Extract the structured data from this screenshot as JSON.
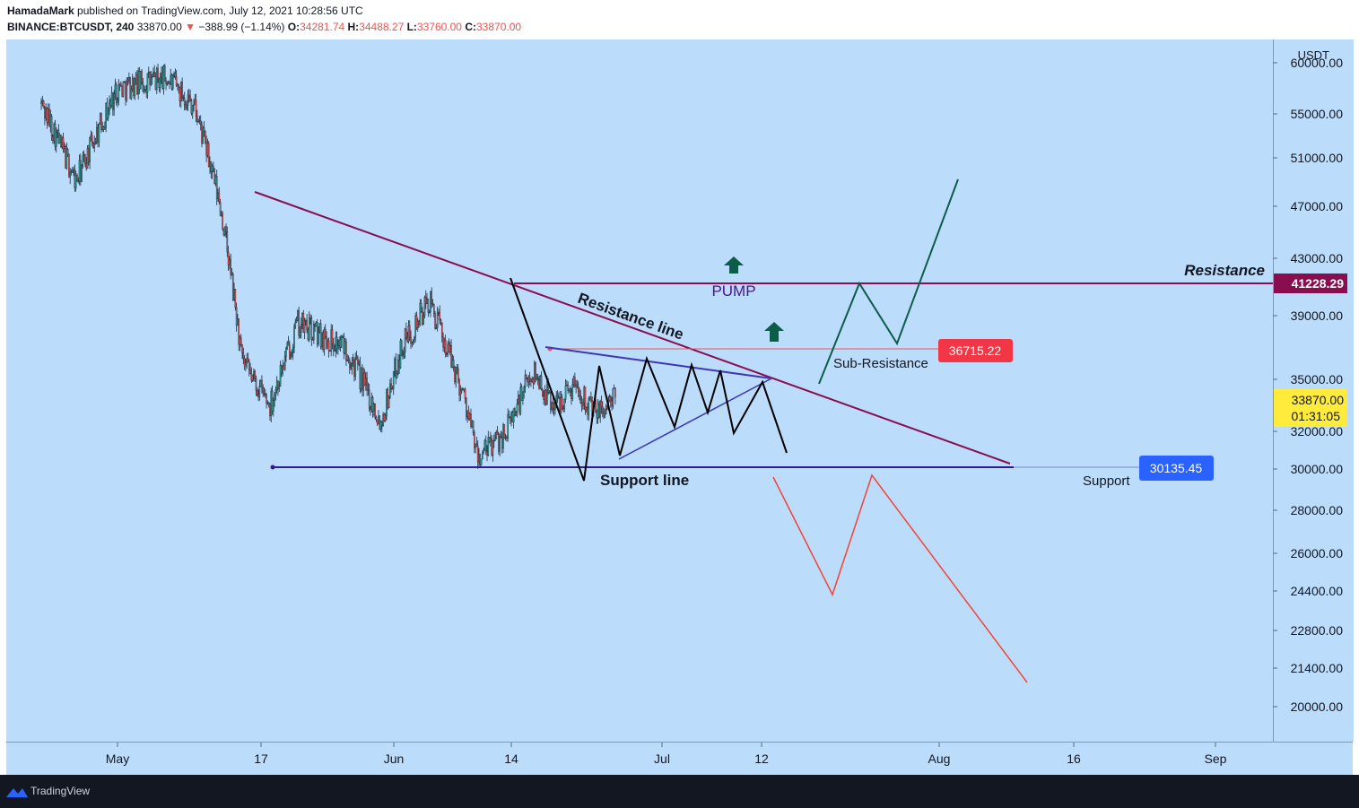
{
  "header": {
    "author": "HamadaMark",
    "published": "published on TradingView.com, July 12, 2021 10:28:56 UTC",
    "symbol": "BINANCE:BTCUSDT, 240",
    "last": "33870.00",
    "arrow": "▼",
    "change": "−388.99 (−1.14%)",
    "o_label": "O:",
    "o_value": "34281.74",
    "h_label": "H:",
    "h_value": "34488.27",
    "l_label": "L:",
    "l_value": "33760.00",
    "c_label": "C:",
    "c_value": "33870.00"
  },
  "footer": {
    "brand": "TradingView"
  },
  "colors": {
    "plot_bg": "#bbdcfa",
    "candle_up": "#26a69a",
    "candle_down": "#ef5350",
    "resistance": "#880e4f",
    "support": "#311b92",
    "triangle": "#3f36b0",
    "pump": "#0d5c4a",
    "dump": "#f44336"
  },
  "chart_data": {
    "type": "candlestick",
    "instrument": "BINANCE:BTCUSDT",
    "interval": "240",
    "currency": "USDT",
    "y_ticks": [
      "60000.00",
      "55000.00",
      "51000.00",
      "47000.00",
      "43000.00",
      "39000.00",
      "35000.00",
      "32000.00",
      "30000.00",
      "28000.00",
      "26000.00",
      "24400.00",
      "22800.00",
      "21400.00",
      "20000.00"
    ],
    "x_ticks": [
      "May",
      "17",
      "Jun",
      "14",
      "Jul",
      "12",
      "Aug",
      "16",
      "Sep"
    ],
    "price_labels": {
      "resistance": "41228.29",
      "sub_resistance": "36715.22",
      "current_price": "33870.00",
      "countdown": "01:31:05",
      "support": "30135.45"
    },
    "annotations": {
      "resistance": "Resistance",
      "resistance_line": "Resistance line",
      "pump": "PUMP",
      "sub_resistance": "Sub-Resistance",
      "support_line": "Support line",
      "support": "Support"
    },
    "series": [
      {
        "date": "2021-04-20",
        "close": 56000
      },
      {
        "date": "2021-04-25",
        "close": 49000
      },
      {
        "date": "2021-05-01",
        "close": 57500
      },
      {
        "date": "2021-05-08",
        "close": 58500
      },
      {
        "date": "2021-05-12",
        "close": 56000
      },
      {
        "date": "2021-05-16",
        "close": 46500
      },
      {
        "date": "2021-05-19",
        "close": 36000
      },
      {
        "date": "2021-05-23",
        "close": 33500
      },
      {
        "date": "2021-05-27",
        "close": 38500
      },
      {
        "date": "2021-06-03",
        "close": 37000
      },
      {
        "date": "2021-06-08",
        "close": 32500
      },
      {
        "date": "2021-06-11",
        "close": 37000
      },
      {
        "date": "2021-06-15",
        "close": 40000
      },
      {
        "date": "2021-06-20",
        "close": 34000
      },
      {
        "date": "2021-06-22",
        "close": 30500
      },
      {
        "date": "2021-06-26",
        "close": 32000
      },
      {
        "date": "2021-06-30",
        "close": 35500
      },
      {
        "date": "2021-07-03",
        "close": 33500
      },
      {
        "date": "2021-07-06",
        "close": 34800
      },
      {
        "date": "2021-07-09",
        "close": 33000
      },
      {
        "date": "2021-07-12",
        "close": 33870
      }
    ]
  }
}
